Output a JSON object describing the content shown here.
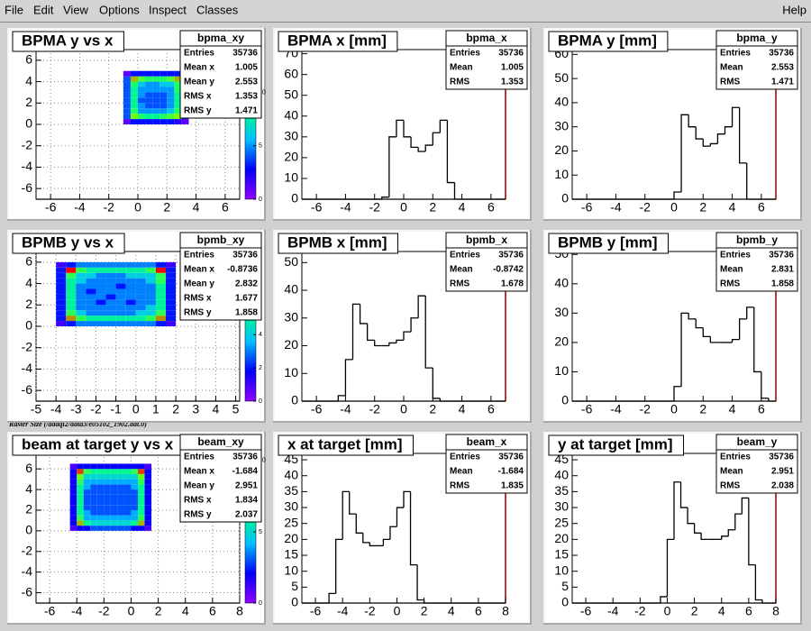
{
  "menu": {
    "items": [
      "File",
      "Edit",
      "View",
      "Options",
      "Inspect",
      "Classes"
    ],
    "help": "Help"
  },
  "caption": "Raster Size (/adaql2/data3/e05102_1902.dat.0)",
  "chart_data": [
    {
      "type": "heatmap",
      "title": "BPMA y vs x",
      "grid": true,
      "xlim": [
        -7,
        7
      ],
      "ylim": [
        -7,
        7
      ],
      "xticks": [
        -6,
        -4,
        -2,
        0,
        2,
        4,
        6
      ],
      "yticks": [
        -6,
        -4,
        -2,
        0,
        2,
        4,
        6
      ],
      "zlim": [
        0,
        14
      ],
      "zticks": [
        0,
        5,
        10
      ],
      "palette": [
        "#9000ff",
        "#0000ff",
        "#00c0ff",
        "#00ff80",
        "#80ff00",
        "#ff0000"
      ],
      "xbins": [
        -1,
        -0.5,
        0,
        0.5,
        1,
        1.5,
        2,
        2.5,
        3,
        3.5
      ],
      "ybins": [
        0,
        0.5,
        1,
        1.5,
        2,
        2.5,
        3,
        3.5,
        4,
        4.5,
        5
      ],
      "z": [
        [
          1,
          3,
          3,
          3,
          3,
          3,
          3,
          2,
          1
        ],
        [
          4,
          11,
          9,
          8,
          8,
          9,
          10,
          11,
          3
        ],
        [
          4,
          9,
          5,
          5,
          5,
          5,
          6,
          9,
          3
        ],
        [
          4,
          8,
          5,
          4,
          4,
          4,
          5,
          8,
          3
        ],
        [
          4,
          8,
          4,
          4,
          4,
          4,
          5,
          8,
          3
        ],
        [
          4,
          8,
          5,
          4,
          4,
          4,
          5,
          8,
          3
        ],
        [
          4,
          8,
          5,
          5,
          5,
          5,
          5,
          9,
          3
        ],
        [
          4,
          9,
          6,
          5,
          5,
          6,
          6,
          9,
          3
        ],
        [
          4,
          12,
          10,
          9,
          9,
          9,
          10,
          12,
          3
        ],
        [
          1,
          3,
          3,
          3,
          3,
          3,
          3,
          3,
          1
        ]
      ],
      "stats": {
        "name": "bpma_xy",
        "rows": [
          {
            "label": "Entries",
            "value": 35736
          },
          {
            "label": "Mean x",
            "value": 1.005
          },
          {
            "label": "Mean y",
            "value": 2.553
          },
          {
            "label": "RMS x",
            "value": 1.353
          },
          {
            "label": "RMS y",
            "value": 1.471
          }
        ]
      }
    },
    {
      "type": "histogram",
      "title": "BPMA x [mm]",
      "grid": false,
      "color": "#000000",
      "xlim": [
        -7,
        7
      ],
      "ylim": [
        0,
        72
      ],
      "xticks": [
        -6,
        -4,
        -2,
        0,
        2,
        4,
        6
      ],
      "yticks": [
        0,
        10,
        20,
        30,
        40,
        50,
        60,
        70
      ],
      "bins": [
        -7,
        -6.5,
        -6,
        -5.5,
        -5,
        -4.5,
        -4,
        -3.5,
        -3,
        -2.5,
        -2,
        -1.5,
        -1,
        -0.5,
        0,
        0.5,
        1,
        1.5,
        2,
        2.5,
        3,
        3.5,
        4,
        4.5,
        5,
        5.5,
        6,
        6.5,
        7
      ],
      "counts": [
        0,
        0,
        0,
        0,
        0,
        0,
        0,
        0,
        0,
        0,
        0,
        1,
        30,
        38,
        30,
        25,
        23,
        26,
        32,
        38,
        8,
        0,
        0,
        0,
        0,
        0,
        0,
        0
      ],
      "stats": {
        "name": "bpma_x",
        "rows": [
          {
            "label": "Entries",
            "value": 35736
          },
          {
            "label": "Mean",
            "value": 1.005
          },
          {
            "label": "RMS",
            "value": 1.353
          }
        ]
      }
    },
    {
      "type": "histogram",
      "title": "BPMA y [mm]",
      "grid": false,
      "color": "#000000",
      "xlim": [
        -7,
        7
      ],
      "ylim": [
        0,
        62
      ],
      "xticks": [
        -6,
        -4,
        -2,
        0,
        2,
        4,
        6
      ],
      "yticks": [
        0,
        10,
        20,
        30,
        40,
        50,
        60
      ],
      "bins": [
        -7,
        -6.5,
        -6,
        -5.5,
        -5,
        -4.5,
        -4,
        -3.5,
        -3,
        -2.5,
        -2,
        -1.5,
        -1,
        -0.5,
        0,
        0.5,
        1,
        1.5,
        2,
        2.5,
        3,
        3.5,
        4,
        4.5,
        5,
        5.5,
        6,
        6.5,
        7
      ],
      "counts": [
        0,
        0,
        0,
        0,
        0,
        0,
        0,
        0,
        0,
        0,
        0,
        0,
        0,
        0,
        3,
        35,
        30,
        25,
        22,
        23,
        27,
        30,
        38,
        15,
        0,
        0,
        0,
        0
      ],
      "stats": {
        "name": "bpma_y",
        "rows": [
          {
            "label": "Entries",
            "value": 35736
          },
          {
            "label": "Mean",
            "value": 2.553
          },
          {
            "label": "RMS",
            "value": 1.471
          }
        ]
      }
    },
    {
      "type": "heatmap",
      "title": "BPMB y vs x",
      "grid": true,
      "xlim": [
        -5,
        5.2
      ],
      "ylim": [
        -7,
        7
      ],
      "xticks": [
        -5,
        -4,
        -3,
        -2,
        -1,
        0,
        1,
        2,
        3,
        4,
        5
      ],
      "yticks": [
        -6,
        -4,
        -2,
        0,
        2,
        4,
        6
      ],
      "zlim": [
        0,
        9
      ],
      "zticks": [
        0,
        2,
        4,
        6,
        8
      ],
      "palette": [
        "#9000ff",
        "#0000ff",
        "#00c0ff",
        "#00ff80",
        "#80ff00",
        "#ff0000"
      ],
      "xbins": [
        -4,
        -3.5,
        -3,
        -2.5,
        -2,
        -1.5,
        -1,
        -0.5,
        0,
        0.5,
        1,
        1.5,
        2
      ],
      "ybins": [
        0,
        0.5,
        1,
        1.5,
        2,
        2.5,
        3,
        3.5,
        4,
        4.5,
        5,
        5.5,
        6
      ],
      "z": [
        [
          1,
          2,
          3,
          3,
          3,
          3,
          3,
          3,
          3,
          3,
          2,
          1
        ],
        [
          2,
          8,
          6,
          5,
          5,
          5,
          5,
          5,
          5,
          6,
          8,
          2
        ],
        [
          2,
          6,
          4,
          3,
          3,
          3,
          3,
          3,
          4,
          4,
          6,
          2
        ],
        [
          2,
          5,
          3,
          3,
          3,
          3,
          3,
          3,
          3,
          4,
          5,
          2
        ],
        [
          2,
          5,
          3,
          3,
          2,
          3,
          3,
          2,
          3,
          3,
          5,
          2
        ],
        [
          2,
          5,
          3,
          3,
          3,
          2,
          3,
          3,
          3,
          3,
          5,
          2
        ],
        [
          2,
          5,
          3,
          2,
          3,
          3,
          3,
          3,
          3,
          3,
          5,
          2
        ],
        [
          2,
          5,
          3,
          3,
          3,
          3,
          2,
          3,
          3,
          3,
          5,
          2
        ],
        [
          2,
          5,
          4,
          3,
          3,
          3,
          3,
          3,
          3,
          4,
          6,
          2
        ],
        [
          2,
          6,
          4,
          4,
          3,
          3,
          3,
          4,
          4,
          4,
          6,
          2
        ],
        [
          2,
          9,
          6,
          5,
          5,
          5,
          5,
          5,
          5,
          6,
          9,
          2
        ],
        [
          1,
          2,
          3,
          3,
          3,
          3,
          3,
          3,
          3,
          3,
          2,
          1
        ]
      ],
      "stats": {
        "name": "bpmb_xy",
        "rows": [
          {
            "label": "Entries",
            "value": 35736
          },
          {
            "label": "Mean x",
            "value": -0.8736
          },
          {
            "label": "Mean y",
            "value": 2.832
          },
          {
            "label": "RMS x",
            "value": 1.677
          },
          {
            "label": "RMS y",
            "value": 1.858
          }
        ]
      }
    },
    {
      "type": "histogram",
      "title": "BPMB x [mm]",
      "grid": false,
      "color": "#000000",
      "xlim": [
        -7,
        7
      ],
      "ylim": [
        0,
        54
      ],
      "xticks": [
        -6,
        -4,
        -2,
        0,
        2,
        4,
        6
      ],
      "yticks": [
        0,
        10,
        20,
        30,
        40,
        50
      ],
      "bins": [
        -7,
        -6.5,
        -6,
        -5.5,
        -5,
        -4.5,
        -4,
        -3.5,
        -3,
        -2.5,
        -2,
        -1.5,
        -1,
        -0.5,
        0,
        0.5,
        1,
        1.5,
        2,
        2.5,
        3,
        3.5,
        4,
        4.5,
        5,
        5.5,
        6,
        6.5,
        7
      ],
      "counts": [
        0,
        0,
        0,
        0,
        0,
        2,
        15,
        35,
        28,
        22,
        20,
        20,
        21,
        22,
        25,
        30,
        38,
        12,
        1,
        0,
        0,
        0,
        0,
        0,
        0,
        0,
        0,
        0
      ],
      "stats": {
        "name": "bpmb_x",
        "rows": [
          {
            "label": "Entries",
            "value": 35736
          },
          {
            "label": "Mean",
            "value": -0.8742
          },
          {
            "label": "RMS",
            "value": 1.678
          }
        ]
      }
    },
    {
      "type": "histogram",
      "title": "BPMB y [mm]",
      "grid": false,
      "color": "#000000",
      "xlim": [
        -7,
        7
      ],
      "ylim": [
        0,
        51
      ],
      "xticks": [
        -6,
        -4,
        -2,
        0,
        2,
        4,
        6
      ],
      "yticks": [
        0,
        10,
        20,
        30,
        40,
        50
      ],
      "bins": [
        -7,
        -6.5,
        -6,
        -5.5,
        -5,
        -4.5,
        -4,
        -3.5,
        -3,
        -2.5,
        -2,
        -1.5,
        -1,
        -0.5,
        0,
        0.5,
        1,
        1.5,
        2,
        2.5,
        3,
        3.5,
        4,
        4.5,
        5,
        5.5,
        6,
        6.5,
        7
      ],
      "counts": [
        0,
        0,
        0,
        0,
        0,
        0,
        0,
        0,
        0,
        0,
        0,
        0,
        0,
        0,
        5,
        30,
        28,
        25,
        22,
        20,
        20,
        20,
        21,
        28,
        32,
        10,
        1,
        0
      ],
      "stats": {
        "name": "bpmb_y",
        "rows": [
          {
            "label": "Entries",
            "value": 35736
          },
          {
            "label": "Mean",
            "value": 2.831
          },
          {
            "label": "RMS",
            "value": 1.858
          }
        ]
      }
    },
    {
      "type": "heatmap",
      "title": "beam at target y vs x",
      "grid": true,
      "xlim": [
        -7,
        8
      ],
      "ylim": [
        -7,
        7.5
      ],
      "xticks": [
        -6,
        -4,
        -2,
        0,
        2,
        4,
        6,
        8
      ],
      "yticks": [
        -6,
        -4,
        -2,
        0,
        2,
        4,
        6
      ],
      "zlim": [
        0,
        10.5
      ],
      "zticks": [
        0,
        5,
        10
      ],
      "palette": [
        "#9000ff",
        "#0000ff",
        "#00c0ff",
        "#00ff80",
        "#80ff00",
        "#ff0000"
      ],
      "xbins": [
        -4.5,
        -4,
        -3.5,
        -3,
        -2.5,
        -2,
        -1.5,
        -1,
        -0.5,
        0,
        0.5,
        1,
        1.5
      ],
      "ybins": [
        0,
        0.5,
        1,
        1.5,
        2,
        2.5,
        3,
        3.5,
        4,
        4.5,
        5,
        5.5,
        6,
        6.5
      ],
      "z": [
        [
          1,
          2,
          2,
          3,
          3,
          3,
          3,
          3,
          3,
          2,
          2,
          1
        ],
        [
          2,
          9,
          6,
          5,
          5,
          5,
          5,
          5,
          5,
          6,
          9,
          2
        ],
        [
          2,
          7,
          4,
          4,
          4,
          4,
          4,
          4,
          4,
          4,
          7,
          2
        ],
        [
          2,
          6,
          4,
          3,
          3,
          3,
          3,
          3,
          3,
          4,
          6,
          2
        ],
        [
          2,
          6,
          3,
          3,
          3,
          3,
          3,
          3,
          3,
          3,
          6,
          2
        ],
        [
          2,
          6,
          3,
          3,
          3,
          3,
          3,
          3,
          3,
          3,
          6,
          2
        ],
        [
          2,
          6,
          3,
          3,
          3,
          3,
          3,
          3,
          3,
          3,
          6,
          2
        ],
        [
          2,
          6,
          3,
          3,
          3,
          3,
          3,
          3,
          3,
          3,
          6,
          2
        ],
        [
          2,
          6,
          4,
          3,
          3,
          3,
          3,
          3,
          3,
          4,
          6,
          2
        ],
        [
          2,
          7,
          4,
          4,
          4,
          4,
          4,
          4,
          4,
          4,
          7,
          2
        ],
        [
          2,
          8,
          5,
          5,
          5,
          5,
          5,
          5,
          5,
          5,
          8,
          2
        ],
        [
          2,
          10,
          7,
          6,
          6,
          6,
          6,
          6,
          6,
          7,
          10,
          2
        ],
        [
          1,
          2,
          2,
          2,
          2,
          2,
          2,
          2,
          2,
          2,
          2,
          1
        ]
      ],
      "stats": {
        "name": "beam_xy",
        "rows": [
          {
            "label": "Entries",
            "value": 35736
          },
          {
            "label": "Mean x",
            "value": -1.684
          },
          {
            "label": "Mean y",
            "value": 2.951
          },
          {
            "label": "RMS x",
            "value": 1.834
          },
          {
            "label": "RMS y",
            "value": 2.037
          }
        ]
      }
    },
    {
      "type": "histogram",
      "title": "x at target [mm]",
      "grid": false,
      "color": "#000000",
      "xlim": [
        -7,
        8
      ],
      "ylim": [
        0,
        47
      ],
      "xticks": [
        -6,
        -4,
        -2,
        0,
        2,
        4,
        6,
        8
      ],
      "yticks": [
        0,
        5,
        10,
        15,
        20,
        25,
        30,
        35,
        40,
        45
      ],
      "bins": [
        -7,
        -6.5,
        -6,
        -5.5,
        -5,
        -4.5,
        -4,
        -3.5,
        -3,
        -2.5,
        -2,
        -1.5,
        -1,
        -0.5,
        0,
        0.5,
        1,
        1.5,
        2,
        2.5,
        3,
        3.5,
        4,
        4.5,
        5,
        5.5,
        6,
        6.5,
        7,
        7.5,
        8
      ],
      "counts": [
        0,
        0,
        0,
        0,
        3,
        20,
        35,
        28,
        22,
        19,
        18,
        18,
        20,
        24,
        30,
        35,
        12,
        1,
        0,
        0,
        0,
        0,
        0,
        0,
        0,
        0,
        0,
        0,
        0,
        0
      ],
      "stats": {
        "name": "beam_x",
        "rows": [
          {
            "label": "Entries",
            "value": 35736
          },
          {
            "label": "Mean",
            "value": -1.684
          },
          {
            "label": "RMS",
            "value": 1.835
          }
        ]
      }
    },
    {
      "type": "histogram",
      "title": "y at target [mm]",
      "grid": false,
      "color": "#000000",
      "xlim": [
        -7,
        8
      ],
      "ylim": [
        0,
        47
      ],
      "xticks": [
        -6,
        -4,
        -2,
        0,
        2,
        4,
        6,
        8
      ],
      "yticks": [
        0,
        5,
        10,
        15,
        20,
        25,
        30,
        35,
        40,
        45
      ],
      "bins": [
        -7,
        -6.5,
        -6,
        -5.5,
        -5,
        -4.5,
        -4,
        -3.5,
        -3,
        -2.5,
        -2,
        -1.5,
        -1,
        -0.5,
        0,
        0.5,
        1,
        1.5,
        2,
        2.5,
        3,
        3.5,
        4,
        4.5,
        5,
        5.5,
        6,
        6.5,
        7,
        7.5,
        8
      ],
      "counts": [
        0,
        0,
        0,
        0,
        0,
        0,
        0,
        0,
        0,
        0,
        0,
        0,
        0,
        2,
        20,
        38,
        30,
        25,
        22,
        20,
        20,
        20,
        21,
        23,
        28,
        33,
        12,
        1,
        0,
        0
      ],
      "stats": {
        "name": "beam_y",
        "rows": [
          {
            "label": "Entries",
            "value": 35736
          },
          {
            "label": "Mean",
            "value": 2.951
          },
          {
            "label": "RMS",
            "value": 2.038
          }
        ]
      }
    }
  ]
}
